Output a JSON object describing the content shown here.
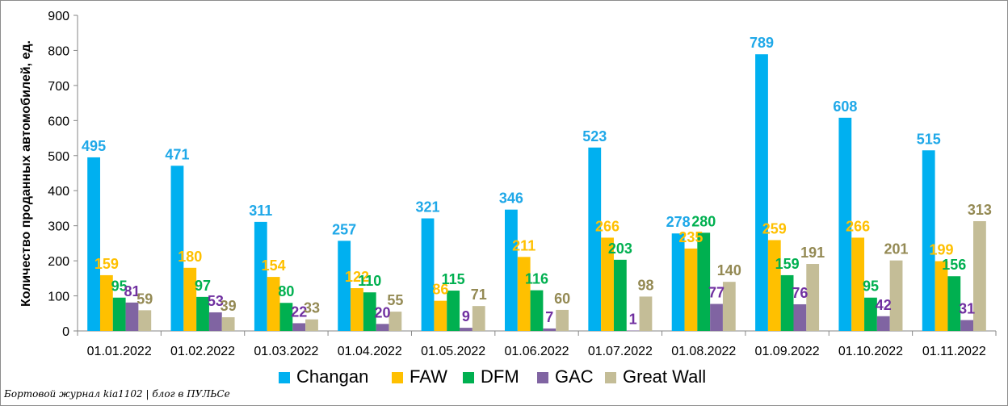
{
  "chart_data": {
    "type": "bar",
    "ylabel": "Количество проданных  автомобилей, ед.",
    "xlabel": "",
    "ylim": [
      0,
      900
    ],
    "yticks": [
      0,
      100,
      200,
      300,
      400,
      500,
      600,
      700,
      800,
      900
    ],
    "grid": false,
    "legend_position": "bottom",
    "categories": [
      "01.01.2022",
      "01.02.2022",
      "01.03.2022",
      "01.04.2022",
      "01.05.2022",
      "01.06.2022",
      "01.07.2022",
      "01.08.2022",
      "01.09.2022",
      "01.10.2022",
      "01.11.2022"
    ],
    "series": [
      {
        "name": "Changan",
        "color": "#00b0f0",
        "label_color": "#1fa8e8",
        "values": [
          495,
          471,
          311,
          257,
          321,
          346,
          523,
          278,
          789,
          608,
          515
        ]
      },
      {
        "name": "FAW",
        "color": "#ffc000",
        "label_color": "#ffc000",
        "values": [
          159,
          180,
          154,
          122,
          86,
          211,
          266,
          235,
          259,
          266,
          199
        ]
      },
      {
        "name": "DFM",
        "color": "#00b050",
        "label_color": "#00b050",
        "values": [
          95,
          97,
          80,
          110,
          115,
          116,
          203,
          280,
          159,
          95,
          156
        ]
      },
      {
        "name": "GAC",
        "color": "#8064a2",
        "label_color": "#7030a0",
        "values": [
          81,
          53,
          22,
          20,
          9,
          7,
          1,
          77,
          76,
          42,
          31
        ]
      },
      {
        "name": "Great Wall",
        "color": "#c4bd97",
        "label_color": "#948a54",
        "values": [
          59,
          39,
          33,
          55,
          71,
          60,
          98,
          140,
          191,
          201,
          313
        ]
      }
    ],
    "data_labels": [
      [
        "495",
        "159",
        "95",
        "81",
        "59"
      ],
      [
        "471",
        "180",
        "97",
        "53",
        "39"
      ],
      [
        "311",
        "154",
        "80",
        "22",
        "33"
      ],
      [
        "257",
        "122",
        "110",
        "20",
        "55"
      ],
      [
        "321",
        "86",
        "115",
        "9",
        "71"
      ],
      [
        "346",
        "211",
        "116",
        "7",
        "60"
      ],
      [
        "523",
        "266",
        "203",
        "1",
        "98"
      ],
      [
        "278",
        "235",
        "280",
        "77",
        "140"
      ],
      [
        "789",
        "259",
        "159",
        "76",
        "191"
      ],
      [
        "608",
        "266",
        "95",
        "42",
        "201"
      ],
      [
        "515",
        "199",
        "156",
        "31",
        "313"
      ]
    ]
  },
  "footer": {
    "credit": "Бортовой журнал kia1102 | блог в ПУЛЬСе"
  }
}
